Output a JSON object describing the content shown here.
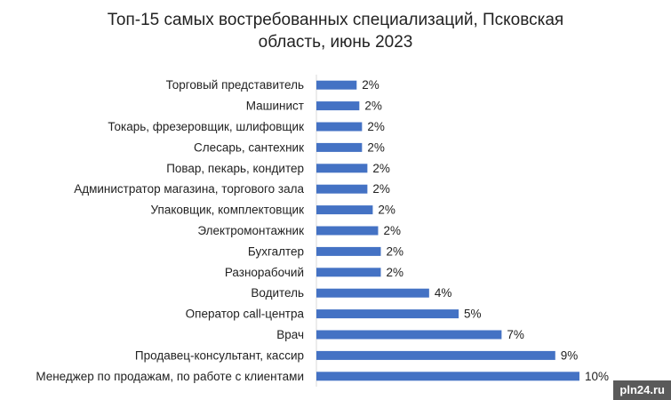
{
  "chart_data": {
    "type": "bar",
    "orientation": "horizontal",
    "title": "Топ-15 самых востребованных специализаций, Псковская область, июнь 2023",
    "title_lines": [
      "Топ-15 самых востребованных специализаций, Псковская",
      "область, июнь 2023"
    ],
    "categories": [
      "Торговый представитель",
      "Машинист",
      "Токарь, фрезеровщик, шлифовщик",
      "Слесарь, сантехник",
      "Повар, пекарь, кондитер",
      "Администратор магазина, торгового зала",
      "Упаковщик, комплектовщик",
      "Электромонтажник",
      "Бухгалтер",
      "Разнорабочий",
      "Водитель",
      "Оператор call-центра",
      "Врач",
      "Продавец-консультант, кассир",
      "Менеджер по продажам, по работе с клиентами"
    ],
    "values": [
      1.5,
      1.6,
      1.7,
      1.7,
      1.9,
      1.9,
      2.1,
      2.3,
      2.4,
      2.4,
      4.2,
      5.3,
      6.9,
      8.9,
      9.8
    ],
    "value_labels": [
      "2%",
      "2%",
      "2%",
      "2%",
      "2%",
      "2%",
      "2%",
      "2%",
      "2%",
      "2%",
      "4%",
      "5%",
      "7%",
      "9%",
      "10%"
    ],
    "xlim": [
      0,
      10
    ],
    "grid": false,
    "legend": "none",
    "bar_color": "#4472C4"
  },
  "watermark": "pln24.ru"
}
